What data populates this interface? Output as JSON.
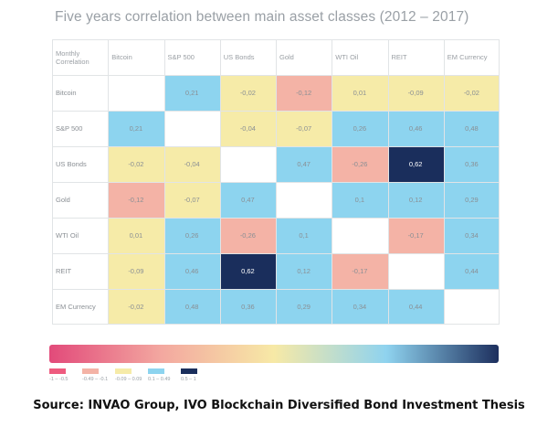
{
  "title": "Five years correlation between main asset classes (2012 – 2017)",
  "source": "Source: INVAO Group, IVO Blockchain Diversified Bond Investment Thesis",
  "chart_data": {
    "type": "heatmap",
    "title": "Five years correlation between main asset classes (2012 – 2017)",
    "corner_label": "Monthly Correlation",
    "columns": [
      "Bitcoin",
      "S&P 500",
      "US Bonds",
      "Gold",
      "WTI Oil",
      "REIT",
      "EM Currency"
    ],
    "rows": [
      "Bitcoin",
      "S&P 500",
      "US Bonds",
      "Gold",
      "WTI Oil",
      "REIT",
      "EM Currency"
    ],
    "labels": [
      [
        "",
        "0,21",
        "-0,02",
        "-0,12",
        "0,01",
        "-0,09",
        "-0,02"
      ],
      [
        "0,21",
        "",
        "-0,04",
        "-0,07",
        "0,26",
        "0,46",
        "0,48"
      ],
      [
        "-0,02",
        "-0,04",
        "",
        "0,47",
        "-0,26",
        "0,62",
        "0,36"
      ],
      [
        "-0,12",
        "-0,07",
        "0,47",
        "",
        "0,1",
        "0,12",
        "0,29"
      ],
      [
        "0,01",
        "0,26",
        "-0,26",
        "0,1",
        "",
        "-0,17",
        "0,34"
      ],
      [
        "-0,09",
        "0,46",
        "0,62",
        "0,12",
        "-0,17",
        "",
        "0,44"
      ],
      [
        "-0,02",
        "0,48",
        "0,36",
        "0,29",
        "0,34",
        "0,44",
        ""
      ]
    ],
    "values": [
      [
        null,
        0.21,
        -0.02,
        -0.12,
        0.01,
        -0.09,
        -0.02
      ],
      [
        0.21,
        null,
        -0.04,
        -0.07,
        0.26,
        0.46,
        0.48
      ],
      [
        -0.02,
        -0.04,
        null,
        0.47,
        -0.26,
        0.62,
        0.36
      ],
      [
        -0.12,
        -0.07,
        0.47,
        null,
        0.1,
        0.12,
        0.29
      ],
      [
        0.01,
        0.26,
        -0.26,
        0.1,
        null,
        -0.17,
        0.34
      ],
      [
        -0.09,
        0.46,
        0.62,
        0.12,
        -0.17,
        null,
        0.44
      ],
      [
        -0.02,
        0.48,
        0.36,
        0.29,
        0.34,
        0.44,
        null
      ]
    ],
    "color_scale": {
      "gradient": [
        "#e24a7a",
        "#f3a8a0",
        "#f7e9a6",
        "#8fd3ef",
        "#1d2f5e"
      ],
      "bins": [
        {
          "label": "-1 – -0.5",
          "min": -1,
          "max": -0.5,
          "color": "#ee5b7f"
        },
        {
          "label": "-0.49 – -0.1",
          "min": -0.49,
          "max": -0.1,
          "color": "#f4b3a6"
        },
        {
          "label": "-0.09 – 0.09",
          "min": -0.09,
          "max": 0.09,
          "color": "#f6eba8"
        },
        {
          "label": "0.1 – 0.49",
          "min": 0.1,
          "max": 0.49,
          "color": "#8dd4ef"
        },
        {
          "label": "0.5 – 1",
          "min": 0.5,
          "max": 1,
          "color": "#1a2e5c"
        }
      ]
    },
    "diagonal_color": "#ffffff",
    "grid_color": "#e1e4e6",
    "text_color": "#8a8f94",
    "text_color_dark_cell": "#ffffff"
  }
}
